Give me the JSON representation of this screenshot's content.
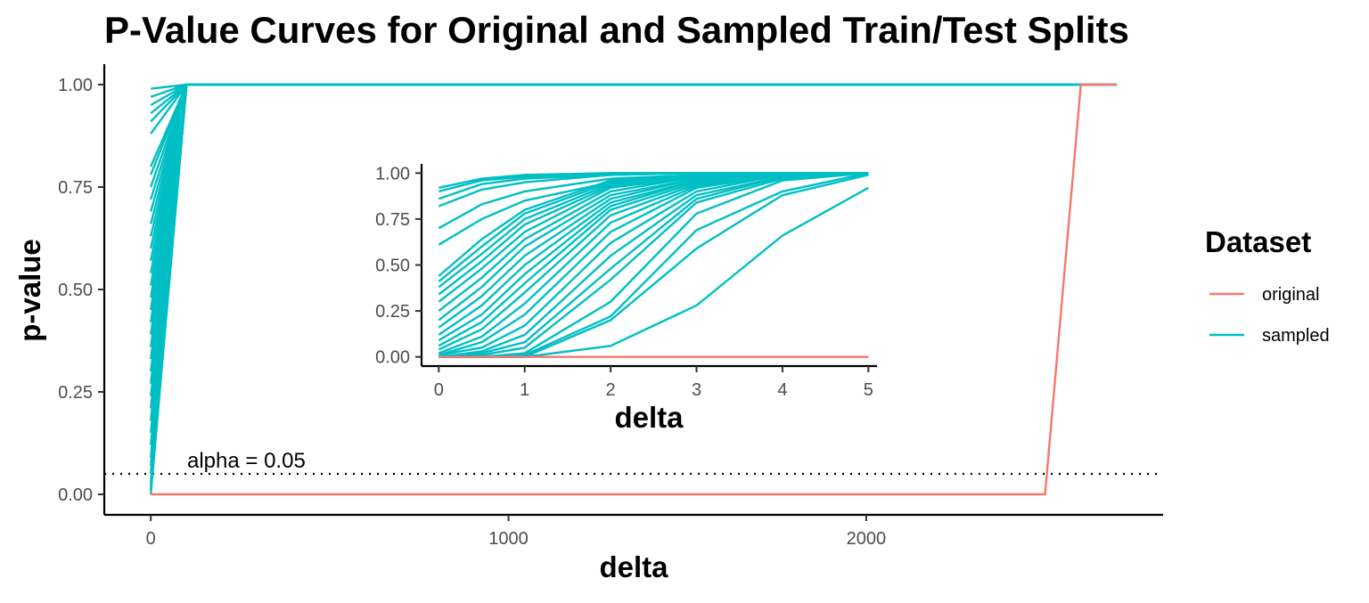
{
  "chart_data": [
    {
      "type": "line",
      "title": "P-Value Curves for Original and Sampled Train/Test Splits",
      "xlabel": "delta",
      "ylabel": "p-value",
      "xlim": [
        -130,
        2830
      ],
      "ylim": [
        -0.05,
        1.05
      ],
      "x_ticks": [
        0,
        1000,
        2000
      ],
      "x_tick_labels": [
        "0",
        "1000",
        "2000"
      ],
      "y_ticks": [
        0,
        0.25,
        0.5,
        0.75,
        1.0
      ],
      "y_tick_labels": [
        "0.00",
        "0.25",
        "0.50",
        "0.75",
        "1.00"
      ],
      "grid": false,
      "legend": {
        "title": "Dataset",
        "position": "right",
        "entries": [
          {
            "label": "original",
            "color": "#F8766D"
          },
          {
            "label": "sampled",
            "color": "#00BFC4"
          }
        ]
      },
      "reference_line": {
        "y": 0.05,
        "style": "dotted",
        "label": "alpha = 0.05"
      },
      "series": [
        {
          "group": "original",
          "color": "#F8766D",
          "x": [
            0,
            2500,
            2600,
            2700
          ],
          "y": [
            0.0,
            0.0,
            1.0,
            1.0
          ]
        },
        {
          "group": "sampled",
          "color": "#00BFC4",
          "start_values": [
            0.0,
            0.01,
            0.02,
            0.03,
            0.05,
            0.07,
            0.09,
            0.12,
            0.15,
            0.18,
            0.21,
            0.24,
            0.27,
            0.3,
            0.33,
            0.36,
            0.39,
            0.42,
            0.45,
            0.48,
            0.51,
            0.54,
            0.57,
            0.6,
            0.63,
            0.66,
            0.69,
            0.72,
            0.75,
            0.78,
            0.8,
            0.88,
            0.91,
            0.93,
            0.95,
            0.97,
            0.99
          ],
          "x_next": 100,
          "y_next": 1.0,
          "x_end": 2700,
          "y_end": 1.0
        }
      ]
    },
    {
      "type": "line",
      "inset": true,
      "xlabel": "delta",
      "ylabel": "",
      "xlim": [
        -0.2,
        5.1
      ],
      "ylim": [
        -0.05,
        1.05
      ],
      "x_ticks": [
        0,
        1,
        2,
        3,
        4,
        5
      ],
      "x_tick_labels": [
        "0",
        "1",
        "2",
        "3",
        "4",
        "5"
      ],
      "y_ticks": [
        0,
        0.25,
        0.5,
        0.75,
        1.0
      ],
      "y_tick_labels": [
        "0.00",
        "0.25",
        "0.50",
        "0.75",
        "1.00"
      ],
      "x": [
        0,
        0.5,
        1,
        2,
        3,
        4,
        5
      ],
      "series": [
        {
          "group": "original",
          "color": "#F8766D",
          "values": [
            0,
            0,
            0,
            0,
            0,
            0,
            0
          ]
        },
        {
          "group": "sampled",
          "color": "#00BFC4",
          "values": [
            0.92,
            0.97,
            0.99,
            1.0,
            1.0,
            1.0,
            1.0
          ]
        },
        {
          "group": "sampled",
          "color": "#00BFC4",
          "values": [
            0.9,
            0.96,
            0.98,
            1.0,
            1.0,
            1.0,
            1.0
          ]
        },
        {
          "group": "sampled",
          "color": "#00BFC4",
          "values": [
            0.86,
            0.94,
            0.97,
            0.99,
            1.0,
            1.0,
            1.0
          ]
        },
        {
          "group": "sampled",
          "color": "#00BFC4",
          "values": [
            0.82,
            0.91,
            0.95,
            0.99,
            1.0,
            1.0,
            1.0
          ]
        },
        {
          "group": "sampled",
          "color": "#00BFC4",
          "values": [
            0.7,
            0.83,
            0.9,
            0.97,
            0.99,
            1.0,
            1.0
          ]
        },
        {
          "group": "sampled",
          "color": "#00BFC4",
          "values": [
            0.61,
            0.75,
            0.85,
            0.95,
            0.99,
            1.0,
            1.0
          ]
        },
        {
          "group": "sampled",
          "color": "#00BFC4",
          "values": [
            0.44,
            0.64,
            0.8,
            0.96,
            0.99,
            1.0,
            1.0
          ]
        },
        {
          "group": "sampled",
          "color": "#00BFC4",
          "values": [
            0.41,
            0.6,
            0.78,
            0.95,
            0.99,
            1.0,
            1.0
          ]
        },
        {
          "group": "sampled",
          "color": "#00BFC4",
          "values": [
            0.38,
            0.56,
            0.75,
            0.94,
            0.99,
            1.0,
            1.0
          ]
        },
        {
          "group": "sampled",
          "color": "#00BFC4",
          "values": [
            0.34,
            0.52,
            0.72,
            0.93,
            0.99,
            1.0,
            1.0
          ]
        },
        {
          "group": "sampled",
          "color": "#00BFC4",
          "values": [
            0.3,
            0.48,
            0.68,
            0.92,
            0.98,
            1.0,
            1.0
          ]
        },
        {
          "group": "sampled",
          "color": "#00BFC4",
          "values": [
            0.25,
            0.43,
            0.64,
            0.9,
            0.98,
            1.0,
            1.0
          ]
        },
        {
          "group": "sampled",
          "color": "#00BFC4",
          "values": [
            0.2,
            0.38,
            0.6,
            0.88,
            0.97,
            1.0,
            1.0
          ]
        },
        {
          "group": "sampled",
          "color": "#00BFC4",
          "values": [
            0.16,
            0.33,
            0.55,
            0.86,
            0.97,
            1.0,
            1.0
          ]
        },
        {
          "group": "sampled",
          "color": "#00BFC4",
          "values": [
            0.12,
            0.28,
            0.5,
            0.84,
            0.96,
            1.0,
            1.0
          ]
        },
        {
          "group": "sampled",
          "color": "#00BFC4",
          "values": [
            0.09,
            0.23,
            0.45,
            0.82,
            0.96,
            1.0,
            1.0
          ]
        },
        {
          "group": "sampled",
          "color": "#00BFC4",
          "values": [
            0.06,
            0.19,
            0.4,
            0.8,
            0.95,
            1.0,
            1.0
          ]
        },
        {
          "group": "sampled",
          "color": "#00BFC4",
          "values": [
            0.04,
            0.15,
            0.35,
            0.77,
            0.94,
            1.0,
            1.0
          ]
        },
        {
          "group": "sampled",
          "color": "#00BFC4",
          "values": [
            0.02,
            0.11,
            0.29,
            0.73,
            0.93,
            0.99,
            1.0
          ]
        },
        {
          "group": "sampled",
          "color": "#00BFC4",
          "values": [
            0.01,
            0.08,
            0.23,
            0.68,
            0.92,
            0.99,
            1.0
          ]
        },
        {
          "group": "sampled",
          "color": "#00BFC4",
          "values": [
            0.01,
            0.05,
            0.17,
            0.62,
            0.9,
            0.99,
            1.0
          ]
        },
        {
          "group": "sampled",
          "color": "#00BFC4",
          "values": [
            0.0,
            0.03,
            0.12,
            0.55,
            0.88,
            0.98,
            1.0
          ]
        },
        {
          "group": "sampled",
          "color": "#00BFC4",
          "values": [
            0.0,
            0.02,
            0.08,
            0.48,
            0.86,
            0.98,
            1.0
          ]
        },
        {
          "group": "sampled",
          "color": "#00BFC4",
          "values": [
            0.0,
            0.01,
            0.05,
            0.42,
            0.84,
            0.97,
            1.0
          ]
        },
        {
          "group": "sampled",
          "color": "#00BFC4",
          "values": [
            0.0,
            0.0,
            0.02,
            0.3,
            0.78,
            0.96,
            1.0
          ]
        },
        {
          "group": "sampled",
          "color": "#00BFC4",
          "values": [
            0.0,
            0.0,
            0.01,
            0.22,
            0.69,
            0.9,
            1.0
          ]
        },
        {
          "group": "sampled",
          "color": "#00BFC4",
          "values": [
            0.0,
            0.0,
            0.0,
            0.2,
            0.59,
            0.88,
            0.99
          ]
        },
        {
          "group": "sampled",
          "color": "#00BFC4",
          "values": [
            0.0,
            0.0,
            0.0,
            0.06,
            0.28,
            0.66,
            0.92
          ]
        }
      ]
    }
  ]
}
